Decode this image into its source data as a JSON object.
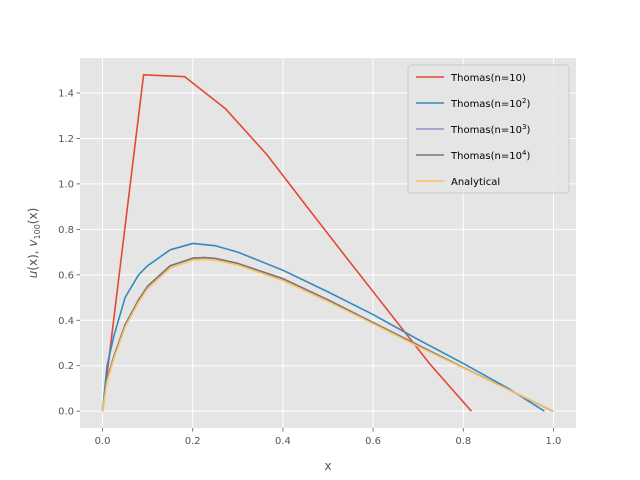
{
  "chart_data": {
    "type": "line",
    "xlabel": "x",
    "ylabel_parts": {
      "u": "u",
      "x1": "(x), ",
      "v": "v",
      "sub": "100",
      "x2": "(x)"
    },
    "xlim": [
      -0.05,
      1.05
    ],
    "ylim": [
      -0.074,
      1.554
    ],
    "x_ticks": [
      0.0,
      0.2,
      0.4,
      0.6,
      0.8,
      1.0
    ],
    "x_tick_labels": [
      "0.0",
      "0.2",
      "0.4",
      "0.6",
      "0.8",
      "1.0"
    ],
    "y_ticks": [
      0.0,
      0.2,
      0.4,
      0.6,
      0.8,
      1.0,
      1.2,
      1.4
    ],
    "y_tick_labels": [
      "0.0",
      "0.2",
      "0.4",
      "0.6",
      "0.8",
      "1.0",
      "1.2",
      "1.4"
    ],
    "grid": true,
    "legend_placement": "top-right",
    "series": [
      {
        "name": "Thomas(n=10)",
        "legend_base": "Thomas(n=10)",
        "legend_sup": "",
        "legend_tail": "",
        "color": "#E24A33",
        "points": [
          [
            0.0,
            0.0
          ],
          [
            0.091,
            1.48
          ],
          [
            0.182,
            1.472
          ],
          [
            0.273,
            1.33
          ],
          [
            0.364,
            1.13
          ],
          [
            0.455,
            0.895
          ],
          [
            0.545,
            0.665
          ],
          [
            0.636,
            0.435
          ],
          [
            0.727,
            0.205
          ],
          [
            0.818,
            0.0
          ]
        ]
      },
      {
        "name": "Thomas(n=10^2)",
        "legend_base": "Thomas(n=10",
        "legend_sup": "2",
        "legend_tail": ")",
        "color": "#348ABD",
        "points": [
          [
            0.0,
            0.0
          ],
          [
            0.01,
            0.2
          ],
          [
            0.025,
            0.33
          ],
          [
            0.05,
            0.5
          ],
          [
            0.08,
            0.6
          ],
          [
            0.1,
            0.64
          ],
          [
            0.15,
            0.71
          ],
          [
            0.2,
            0.738
          ],
          [
            0.25,
            0.728
          ],
          [
            0.3,
            0.7
          ],
          [
            0.35,
            0.66
          ],
          [
            0.4,
            0.62
          ],
          [
            0.5,
            0.525
          ],
          [
            0.6,
            0.425
          ],
          [
            0.7,
            0.315
          ],
          [
            0.8,
            0.21
          ],
          [
            0.9,
            0.1
          ],
          [
            0.98,
            0.0
          ]
        ]
      },
      {
        "name": "Thomas(n=10^3)",
        "legend_base": "Thomas(n=10",
        "legend_sup": "3",
        "legend_tail": ")",
        "color": "#988ED5",
        "points": [
          [
            0.0,
            0.0
          ],
          [
            0.01,
            0.14
          ],
          [
            0.025,
            0.24
          ],
          [
            0.05,
            0.38
          ],
          [
            0.08,
            0.49
          ],
          [
            0.1,
            0.55
          ],
          [
            0.15,
            0.64
          ],
          [
            0.2,
            0.673
          ],
          [
            0.225,
            0.676
          ],
          [
            0.25,
            0.672
          ],
          [
            0.3,
            0.65
          ],
          [
            0.4,
            0.583
          ],
          [
            0.5,
            0.49
          ],
          [
            0.6,
            0.39
          ],
          [
            0.7,
            0.29
          ],
          [
            0.8,
            0.192
          ],
          [
            0.9,
            0.095
          ],
          [
            0.998,
            0.0
          ]
        ]
      },
      {
        "name": "Thomas(n=10^4)",
        "legend_base": "Thomas(n=10",
        "legend_sup": "4",
        "legend_tail": ")",
        "color": "#777777",
        "points": [
          [
            0.0,
            0.0
          ],
          [
            0.01,
            0.14
          ],
          [
            0.025,
            0.24
          ],
          [
            0.05,
            0.38
          ],
          [
            0.08,
            0.49
          ],
          [
            0.1,
            0.55
          ],
          [
            0.15,
            0.64
          ],
          [
            0.2,
            0.673
          ],
          [
            0.225,
            0.676
          ],
          [
            0.25,
            0.672
          ],
          [
            0.3,
            0.65
          ],
          [
            0.4,
            0.583
          ],
          [
            0.5,
            0.49
          ],
          [
            0.6,
            0.39
          ],
          [
            0.7,
            0.29
          ],
          [
            0.8,
            0.192
          ],
          [
            0.9,
            0.095
          ],
          [
            1.0,
            0.0
          ]
        ]
      },
      {
        "name": "Analytical",
        "legend_base": "Analytical",
        "legend_sup": "",
        "legend_tail": "",
        "color": "#FBC15E",
        "points": [
          [
            0.0,
            0.0
          ],
          [
            0.01,
            0.13
          ],
          [
            0.025,
            0.23
          ],
          [
            0.05,
            0.37
          ],
          [
            0.08,
            0.48
          ],
          [
            0.1,
            0.54
          ],
          [
            0.15,
            0.63
          ],
          [
            0.2,
            0.665
          ],
          [
            0.225,
            0.668
          ],
          [
            0.25,
            0.665
          ],
          [
            0.3,
            0.643
          ],
          [
            0.4,
            0.575
          ],
          [
            0.5,
            0.483
          ],
          [
            0.6,
            0.385
          ],
          [
            0.7,
            0.285
          ],
          [
            0.8,
            0.19
          ],
          [
            0.9,
            0.095
          ],
          [
            1.0,
            0.0
          ]
        ]
      }
    ]
  }
}
